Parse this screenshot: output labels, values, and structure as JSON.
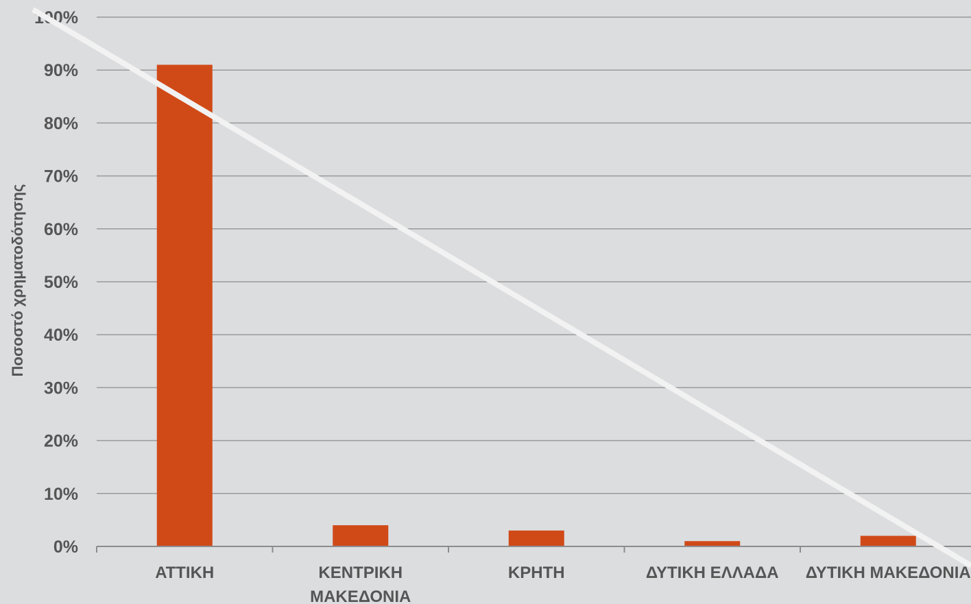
{
  "chart_data": {
    "type": "bar",
    "categories": [
      [
        "ΑΤΤΙΚΗ"
      ],
      [
        "ΚΕΝΤΡΙΚΗ",
        "ΜΑΚΕΔΟΝΙΑ"
      ],
      [
        "ΚΡΗΤΗ"
      ],
      [
        "ΔΥΤΙΚΗ ΕΛΛΑΔΑ"
      ],
      [
        "ΔΥΤΙΚΗ ΜΑΚΕΔΟΝΙΑ"
      ]
    ],
    "values": [
      91,
      4,
      3,
      1,
      2
    ],
    "ylabel": "Ποσοστό χρηματοδότησης",
    "ylim": [
      0,
      100
    ],
    "yticks": [
      "0%",
      "10%",
      "20%",
      "30%",
      "40%",
      "50%",
      "60%",
      "70%",
      "80%",
      "90%",
      "100%"
    ],
    "grid": true,
    "colors": {
      "bar": "#d04a18",
      "grid": "#9a9a9a",
      "axis": "#8c8c8c",
      "text": "#555555",
      "background": "#dcdddf",
      "overlay_line": "#f2f2f2"
    }
  }
}
